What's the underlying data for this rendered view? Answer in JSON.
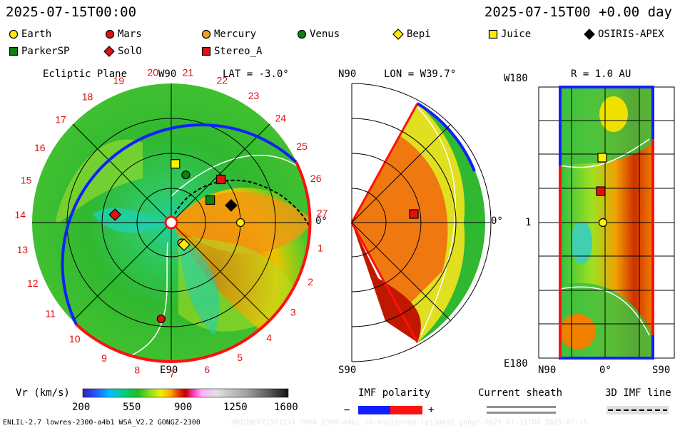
{
  "header": {
    "datetime_left": "2025-07-15T00:00",
    "datetime_right": "2025-07-15T00 +0.00 day"
  },
  "legend": [
    {
      "name": "Earth",
      "marker": "circle",
      "color": "#ffee00"
    },
    {
      "name": "Mars",
      "marker": "circle",
      "color": "#e01010"
    },
    {
      "name": "Mercury",
      "marker": "circle",
      "color": "#f0a020"
    },
    {
      "name": "Venus",
      "marker": "circle",
      "color": "#108010"
    },
    {
      "name": "Bepi",
      "marker": "diamond",
      "color": "#ffee00"
    },
    {
      "name": "Juice",
      "marker": "square",
      "color": "#ffee00"
    },
    {
      "name": "OSIRIS-APEX",
      "marker": "diamond",
      "color": "#000000"
    },
    {
      "name": "ParkerSP",
      "marker": "square",
      "color": "#108010"
    },
    {
      "name": "SolO",
      "marker": "diamond",
      "color": "#e01010"
    },
    {
      "name": "Stereo_A",
      "marker": "square",
      "color": "#e01010"
    }
  ],
  "panels": {
    "ecliptic": {
      "title": "Ecliptic Plane",
      "lat_label": "LAT = -3.0°",
      "top_label": "W90",
      "bottom_label": "E90",
      "right_label": "0°",
      "carrington_ticks": [
        "20",
        "21",
        "22",
        "23",
        "24",
        "25",
        "26",
        "27",
        "1",
        "2",
        "3",
        "4",
        "5",
        "6",
        "7",
        "8",
        "9",
        "10",
        "11",
        "12",
        "13",
        "14",
        "15",
        "16",
        "17",
        "18",
        "19"
      ]
    },
    "meridional": {
      "title": "LON = W39.7°",
      "top_label": "N90",
      "bottom_label": "S90",
      "right_label": "0°"
    },
    "radial": {
      "title": "R = 1.0 AU",
      "y_top": "W180",
      "y_mid": "1",
      "y_bottom": "E180",
      "x_left": "N90",
      "x_mid": "0°",
      "x_right": "S90"
    }
  },
  "colorbar": {
    "label": "Vr (km/s)",
    "ticks": [
      "200",
      "550",
      "900",
      "1250",
      "1600"
    ],
    "colors": [
      "#3020c0",
      "#2060ff",
      "#00c0ff",
      "#00d080",
      "#20c020",
      "#90e020",
      "#f0f000",
      "#ffa000",
      "#e03000",
      "#c00000",
      "#ff40c0",
      "#ffb0ff",
      "#e0e0e0",
      "#a0a0a0",
      "#606060",
      "#202020"
    ]
  },
  "imf_legend": {
    "polarity_label": "IMF polarity",
    "minus": "−",
    "plus": "+",
    "sheath_label": "Current sheath",
    "imf_line_label": "3D IMF line"
  },
  "footer": {
    "left": "ENLIL-2.7 lowres-2300-a4b1 WSA_V2.2 GONGZ-2300",
    "right": "UNIQUE071501234 7068 2300-a4b1.16-noplanned-1g53d0d2 gongz-2025-07-15T00 2025-07-15"
  },
  "chart_data": [
    {
      "type": "heatmap",
      "title": "Ecliptic Plane",
      "subtitle": "LAT = -3.0°",
      "variable": "Vr (km/s)",
      "color_range": [
        200,
        1600
      ],
      "markers": [
        {
          "name": "Earth",
          "lon_deg": 0,
          "r_au": 1.0
        },
        {
          "name": "Mars",
          "lon_deg": -96,
          "r_au": 1.4
        },
        {
          "name": "Mercury",
          "lon_deg": -63,
          "r_au": 0.33
        },
        {
          "name": "Venus",
          "lon_deg": 73,
          "r_au": 0.72
        },
        {
          "name": "Bepi",
          "lon_deg": -60,
          "r_au": 0.37
        },
        {
          "name": "Juice",
          "lon_deg": 86,
          "r_au": 0.85
        },
        {
          "name": "OSIRIS-APEX",
          "lon_deg": 16,
          "r_au": 0.9
        },
        {
          "name": "ParkerSP",
          "lon_deg": 30,
          "r_au": 0.65
        },
        {
          "name": "SolO",
          "lon_deg": 172,
          "r_au": 0.82
        },
        {
          "name": "Stereo_A",
          "lon_deg": 41,
          "r_au": 0.95
        }
      ]
    },
    {
      "type": "heatmap",
      "title": "LON = W39.7°",
      "variable": "Vr (km/s)",
      "markers": [
        {
          "name": "Stereo_A",
          "lat_deg": -3,
          "r_au": 0.95
        }
      ]
    },
    {
      "type": "heatmap",
      "title": "R = 1.0 AU",
      "variable": "Vr (km/s)",
      "markers": [
        {
          "name": "Juice",
          "lat_deg": 0,
          "lon_deg": 86
        },
        {
          "name": "Stereo_A",
          "lat_deg": 0,
          "lon_deg": 41
        },
        {
          "name": "Earth",
          "lat_deg": 0,
          "lon_deg": 0
        }
      ]
    }
  ]
}
